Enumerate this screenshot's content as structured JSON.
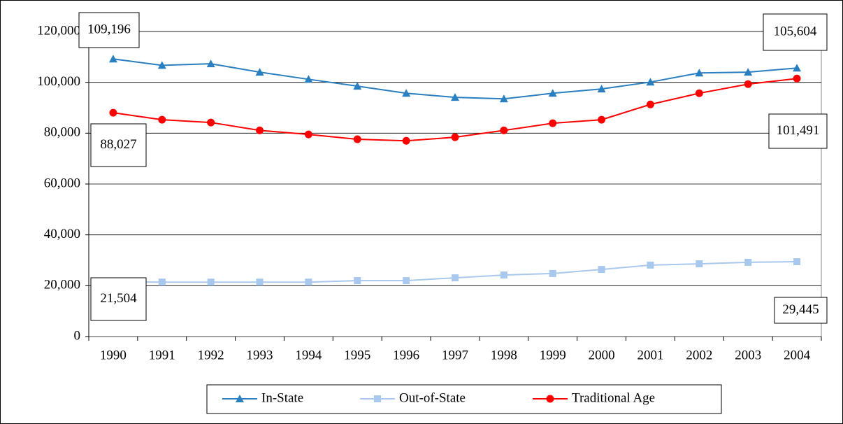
{
  "chart_data": {
    "type": "line",
    "categories": [
      "1990",
      "1991",
      "1992",
      "1993",
      "1994",
      "1995",
      "1996",
      "1997",
      "1998",
      "1999",
      "2000",
      "2001",
      "2002",
      "2003",
      "2004"
    ],
    "series": [
      {
        "name": "In-State",
        "color": "#2a7fc0",
        "marker": "triangle",
        "values": [
          109196,
          106700,
          107300,
          104000,
          101200,
          98500,
          95700,
          94100,
          93500,
          95700,
          97400,
          100100,
          103700,
          104000,
          105604
        ],
        "value_labels": [
          "109,196",
          null,
          null,
          null,
          null,
          null,
          null,
          null,
          null,
          null,
          null,
          null,
          null,
          null,
          "105,604"
        ]
      },
      {
        "name": "Out-of-State",
        "color": "#a8c8ee",
        "marker": "square",
        "values": [
          21504,
          21400,
          21400,
          21400,
          21400,
          22000,
          22000,
          23100,
          24200,
          24800,
          26400,
          28100,
          28600,
          29200,
          29445
        ],
        "value_labels": [
          "21,504",
          null,
          null,
          null,
          null,
          null,
          null,
          null,
          null,
          null,
          null,
          null,
          null,
          null,
          "29,445"
        ]
      },
      {
        "name": "Traditional Age",
        "color": "#ff0000",
        "marker": "circle",
        "values": [
          88027,
          85300,
          84200,
          81100,
          79500,
          77600,
          77000,
          78400,
          81100,
          83900,
          85300,
          91300,
          95700,
          99300,
          101491
        ],
        "value_labels": [
          "88,027",
          null,
          null,
          null,
          null,
          null,
          null,
          null,
          null,
          null,
          null,
          null,
          null,
          null,
          "101,491"
        ]
      }
    ],
    "ylim": [
      0,
      120000
    ],
    "yticks": [
      0,
      {
        "value": 20000,
        "label": "20,000"
      },
      {
        "value": 40000,
        "label": "40,000"
      },
      {
        "value": 60000,
        "label": "60,000"
      },
      {
        "value": 80000,
        "label": "80,000"
      },
      {
        "value": 100000,
        "label": "100,000"
      },
      {
        "value": 120000,
        "label": "120,000"
      }
    ],
    "grid": true,
    "legend": "bottom"
  }
}
